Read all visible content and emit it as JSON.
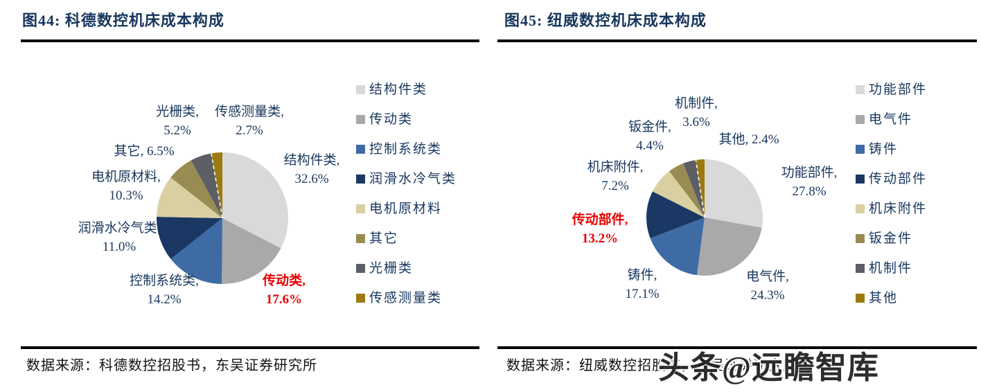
{
  "watermark": {
    "text": "头条@远瞻智库"
  },
  "highlight_color": "#e60000",
  "text_color": "#17365d",
  "chart_data": [
    {
      "type": "pie",
      "title": "图44:  科德数控机床成本构成",
      "source": "数据来源：科德数控招股书，东吴证券研究所",
      "legend_position": "right",
      "start_angle_deg": -90,
      "direction": "clockwise",
      "categories": [
        "结构件类",
        "传动类",
        "控制系统类",
        "润滑水冷气类",
        "电机原材料",
        "其它",
        "光栅类",
        "传感测量类"
      ],
      "values": [
        32.6,
        17.6,
        14.2,
        11.0,
        10.3,
        6.5,
        5.2,
        2.7
      ],
      "colors": [
        "#d9d9d9",
        "#a9a9ab",
        "#3f6ba5",
        "#1b3864",
        "#d9d0a2",
        "#988c52",
        "#5c5f66",
        "#9c7a10"
      ],
      "highlighted_category": "传动类",
      "callouts": [
        {
          "line1": "结构件类,",
          "line2": "32.6%",
          "highlight": false
        },
        {
          "line1": "传动类,",
          "line2": "17.6%",
          "highlight": true
        },
        {
          "line1": "控制系统类,",
          "line2": "14.2%",
          "highlight": false
        },
        {
          "line1": "润滑水冷气类,",
          "line2": "11.0%",
          "highlight": false
        },
        {
          "line1": "电机原材料,",
          "line2": "10.3%",
          "highlight": false
        },
        {
          "line1": "其它, 6.5%",
          "line2": "",
          "highlight": false
        },
        {
          "line1": "光栅类,",
          "line2": "5.2%",
          "highlight": false
        },
        {
          "line1": "传感测量类,",
          "line2": "2.7%",
          "highlight": false
        }
      ]
    },
    {
      "type": "pie",
      "title": "图45:  纽威数控机床成本构成",
      "source": "数据来源：纽威数控招股书，东吴证券研究所",
      "legend_position": "right",
      "start_angle_deg": -90,
      "direction": "clockwise",
      "categories": [
        "功能部件",
        "电气件",
        "铸件",
        "传动部件",
        "机床附件",
        "钣金件",
        "机制件",
        "其他"
      ],
      "values": [
        27.8,
        24.3,
        17.1,
        13.2,
        7.2,
        4.4,
        3.6,
        2.4
      ],
      "colors": [
        "#d9d9d9",
        "#a9a9ab",
        "#3f6ba5",
        "#1b3864",
        "#d9d0a2",
        "#988c52",
        "#5c5f66",
        "#9c7a10"
      ],
      "highlighted_category": "传动部件",
      "callouts": [
        {
          "line1": "功能部件,",
          "line2": "27.8%",
          "highlight": false
        },
        {
          "line1": "电气件,",
          "line2": "24.3%",
          "highlight": false
        },
        {
          "line1": "铸件,",
          "line2": "17.1%",
          "highlight": false
        },
        {
          "line1": "传动部件,",
          "line2": "13.2%",
          "highlight": true
        },
        {
          "line1": "机床附件,",
          "line2": "7.2%",
          "highlight": false
        },
        {
          "line1": "钣金件,",
          "line2": "4.4%",
          "highlight": false
        },
        {
          "line1": "机制件,",
          "line2": "3.6%",
          "highlight": false
        },
        {
          "line1": "其他, 2.4%",
          "line2": "",
          "highlight": false
        }
      ]
    }
  ]
}
